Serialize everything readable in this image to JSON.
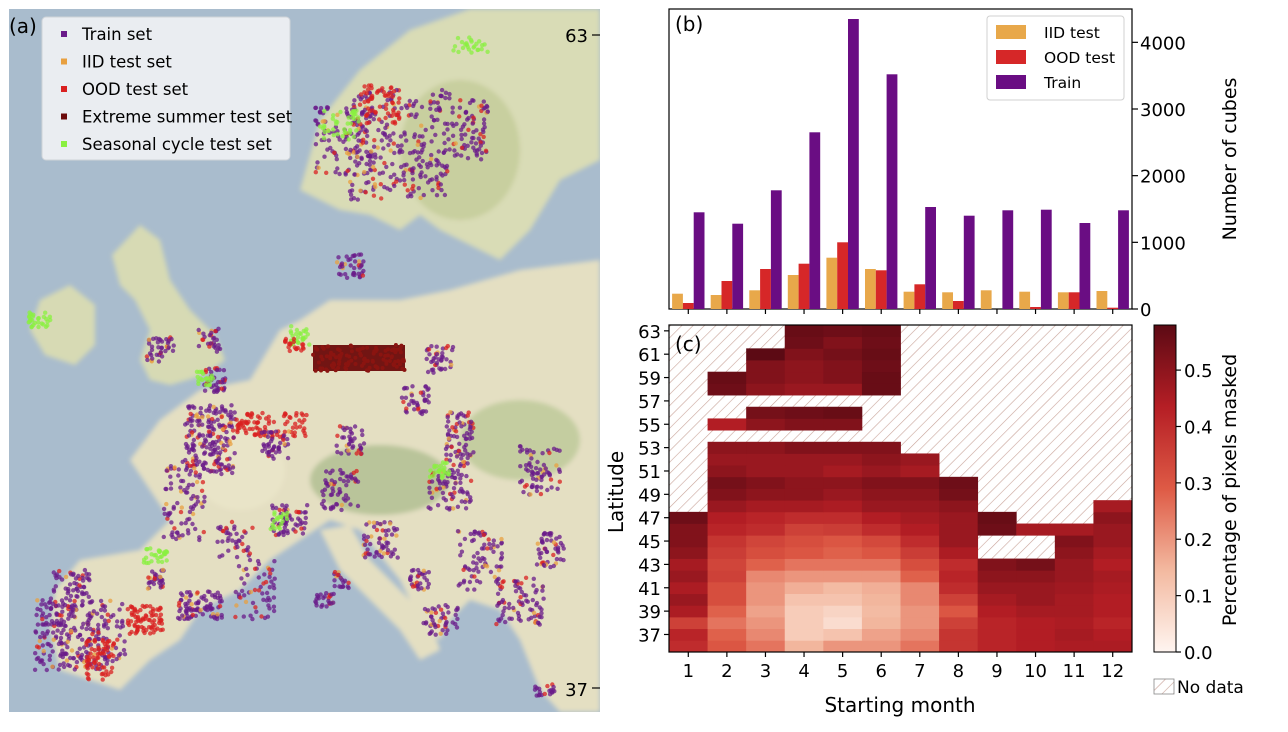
{
  "panel_a": {
    "label": "(a)",
    "legend": [
      {
        "name": "Train set",
        "color": "#6a1b8a"
      },
      {
        "name": "IID test set",
        "color": "#e8a040"
      },
      {
        "name": "OOD test set",
        "color": "#d92020"
      },
      {
        "name": "Extreme summer test set",
        "color": "#6b0a0a"
      },
      {
        "name": "Seasonal cycle test set",
        "color": "#8af040"
      }
    ],
    "lat_ticks": [
      "63",
      "37"
    ],
    "colors": {
      "water": "#a9bccd",
      "land": "#e6e1c4",
      "forest": "#c9d4a4"
    }
  },
  "chart_data": [
    {
      "type": "bar",
      "panel": "(b)",
      "categories": [
        "1",
        "2",
        "3",
        "4",
        "5",
        "6",
        "7",
        "8",
        "9",
        "10",
        "11",
        "12"
      ],
      "series": [
        {
          "name": "IID test",
          "color": "#e8a84a",
          "values": [
            230,
            210,
            280,
            510,
            770,
            600,
            260,
            250,
            280,
            260,
            250,
            270
          ]
        },
        {
          "name": "OOD test",
          "color": "#d62728",
          "values": [
            90,
            420,
            600,
            680,
            1000,
            580,
            370,
            120,
            0,
            30,
            250,
            20
          ]
        },
        {
          "name": "Train",
          "color": "#6a0d83",
          "values": [
            1450,
            1280,
            1780,
            2650,
            4350,
            3520,
            1530,
            1400,
            1480,
            1490,
            1290,
            1480
          ]
        }
      ],
      "ylabel": "Number of cubes",
      "yticks": [
        "0",
        "1000",
        "2000",
        "3000",
        "4000"
      ],
      "ylim": [
        0,
        4500
      ],
      "legend_position": "top-right"
    },
    {
      "type": "heatmap",
      "panel": "(c)",
      "xlabel": "Starting month",
      "ylabel": "Latitude",
      "xticks": [
        "1",
        "2",
        "3",
        "4",
        "5",
        "6",
        "7",
        "8",
        "9",
        "10",
        "11",
        "12"
      ],
      "yticks": [
        "37",
        "39",
        "41",
        "43",
        "45",
        "47",
        "49",
        "51",
        "53",
        "55",
        "57",
        "59",
        "61",
        "63"
      ],
      "colorbar_label": "Percentage of pixels masked",
      "colorbar_ticks": [
        "0.0",
        "0.1",
        "0.2",
        "0.3",
        "0.4",
        "0.5"
      ],
      "colorbar_range": [
        0,
        0.58
      ],
      "nodata_label": "No data",
      "lat_rows": [
        36,
        37,
        38,
        39,
        40,
        41,
        42,
        43,
        44,
        45,
        46,
        47,
        48,
        49,
        50,
        51,
        52,
        53,
        54,
        55,
        56,
        57,
        58,
        59,
        60,
        61,
        62,
        63
      ],
      "values": [
        [
          0.4,
          0.3,
          0.25,
          0.15,
          0.2,
          0.2,
          0.25,
          0.38,
          0.42,
          0.44,
          0.45,
          0.45
        ],
        [
          0.42,
          0.28,
          0.22,
          0.1,
          0.12,
          0.18,
          0.22,
          0.38,
          0.42,
          0.44,
          0.46,
          0.44
        ],
        [
          0.35,
          0.25,
          0.2,
          0.1,
          0.06,
          0.15,
          0.2,
          0.35,
          0.42,
          0.44,
          0.45,
          0.42
        ],
        [
          0.45,
          0.28,
          0.18,
          0.1,
          0.08,
          0.14,
          0.2,
          0.3,
          0.44,
          0.46,
          0.46,
          0.44
        ],
        [
          0.48,
          0.32,
          0.2,
          0.12,
          0.12,
          0.15,
          0.22,
          0.35,
          0.46,
          0.48,
          0.46,
          0.44
        ],
        [
          0.45,
          0.32,
          0.2,
          0.16,
          0.14,
          0.16,
          0.22,
          0.4,
          0.48,
          0.48,
          0.47,
          0.45
        ],
        [
          0.48,
          0.35,
          0.22,
          0.2,
          0.2,
          0.2,
          0.28,
          0.42,
          0.5,
          0.5,
          0.48,
          0.46
        ],
        [
          0.46,
          0.34,
          0.28,
          0.25,
          0.25,
          0.25,
          0.32,
          0.4,
          0.52,
          0.54,
          0.48,
          0.44
        ],
        [
          0.5,
          0.36,
          0.32,
          0.3,
          0.28,
          0.3,
          0.36,
          0.45,
          null,
          null,
          0.5,
          0.46
        ],
        [
          0.52,
          0.38,
          0.34,
          0.32,
          0.3,
          0.33,
          0.4,
          0.48,
          null,
          null,
          0.52,
          0.48
        ],
        [
          0.52,
          0.42,
          0.4,
          0.35,
          0.36,
          0.4,
          0.44,
          0.48,
          0.55,
          0.46,
          0.46,
          0.48
        ],
        [
          0.55,
          0.44,
          0.42,
          0.4,
          0.4,
          0.44,
          0.46,
          0.48,
          0.56,
          null,
          null,
          0.5
        ],
        [
          null,
          0.48,
          0.46,
          0.46,
          0.45,
          0.48,
          0.48,
          0.5,
          null,
          null,
          null,
          0.46
        ],
        [
          null,
          0.52,
          0.5,
          0.5,
          0.48,
          0.5,
          0.5,
          0.54,
          null,
          null,
          null,
          null
        ],
        [
          null,
          0.54,
          0.52,
          0.5,
          0.5,
          0.52,
          0.52,
          0.55,
          null,
          null,
          null,
          null
        ],
        [
          null,
          0.5,
          0.48,
          0.48,
          0.46,
          0.48,
          0.46,
          null,
          null,
          null,
          null,
          null
        ],
        [
          null,
          0.48,
          0.48,
          0.48,
          0.48,
          0.5,
          0.48,
          null,
          null,
          null,
          null,
          null
        ],
        [
          null,
          0.5,
          0.5,
          0.52,
          0.52,
          0.52,
          null,
          null,
          null,
          null,
          null,
          null
        ],
        [
          null,
          null,
          null,
          null,
          null,
          null,
          null,
          null,
          null,
          null,
          null,
          null
        ],
        [
          null,
          0.44,
          0.5,
          0.52,
          0.52,
          null,
          null,
          null,
          null,
          null,
          null,
          null
        ],
        [
          null,
          null,
          0.54,
          0.55,
          0.56,
          null,
          null,
          null,
          null,
          null,
          null,
          null
        ],
        [
          null,
          null,
          null,
          null,
          null,
          null,
          null,
          null,
          null,
          null,
          null,
          null
        ],
        [
          null,
          0.55,
          0.5,
          0.48,
          0.48,
          0.56,
          null,
          null,
          null,
          null,
          null,
          null
        ],
        [
          null,
          0.56,
          0.52,
          0.5,
          0.52,
          0.56,
          null,
          null,
          null,
          null,
          null,
          null
        ],
        [
          null,
          null,
          0.52,
          0.5,
          0.52,
          0.55,
          null,
          null,
          null,
          null,
          null,
          null
        ],
        [
          null,
          null,
          0.58,
          0.52,
          0.54,
          0.56,
          null,
          null,
          null,
          null,
          null,
          null
        ],
        [
          null,
          null,
          null,
          0.55,
          0.52,
          0.55,
          null,
          null,
          null,
          null,
          null,
          null
        ],
        [
          null,
          null,
          null,
          0.56,
          0.55,
          0.56,
          null,
          null,
          null,
          null,
          null,
          null
        ]
      ]
    }
  ]
}
